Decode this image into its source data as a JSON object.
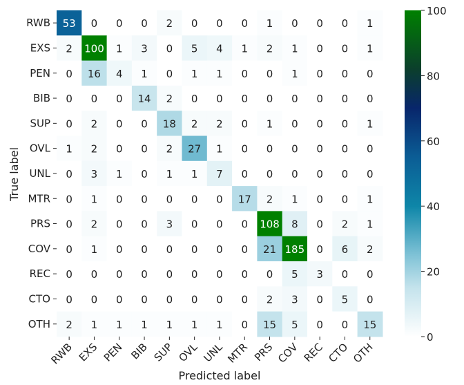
{
  "chart_data": {
    "type": "heatmap",
    "title": "",
    "xlabel": "Predicted label",
    "ylabel": "True label",
    "x_categories": [
      "RWB",
      "EXS",
      "PEN",
      "BIB",
      "SUP",
      "OVL",
      "UNL",
      "MTR",
      "PRS",
      "COV",
      "REC",
      "CTO",
      "OTH"
    ],
    "y_categories": [
      "RWB",
      "EXS",
      "PEN",
      "BIB",
      "SUP",
      "OVL",
      "UNL",
      "MTR",
      "PRS",
      "COV",
      "REC",
      "CTO",
      "OTH"
    ],
    "values": [
      [
        53,
        0,
        0,
        0,
        2,
        0,
        0,
        0,
        1,
        0,
        0,
        0,
        1
      ],
      [
        2,
        100,
        1,
        3,
        0,
        5,
        4,
        1,
        2,
        1,
        0,
        0,
        1
      ],
      [
        0,
        16,
        4,
        1,
        0,
        1,
        1,
        0,
        0,
        1,
        0,
        0,
        0
      ],
      [
        0,
        0,
        0,
        14,
        2,
        0,
        0,
        0,
        0,
        0,
        0,
        0,
        0
      ],
      [
        0,
        2,
        0,
        0,
        18,
        2,
        2,
        0,
        1,
        0,
        0,
        0,
        1
      ],
      [
        1,
        2,
        0,
        0,
        2,
        27,
        1,
        0,
        0,
        0,
        0,
        0,
        0
      ],
      [
        0,
        3,
        1,
        0,
        1,
        1,
        7,
        0,
        0,
        0,
        0,
        0,
        0
      ],
      [
        0,
        1,
        0,
        0,
        0,
        0,
        0,
        17,
        2,
        1,
        0,
        0,
        1
      ],
      [
        0,
        2,
        0,
        0,
        3,
        0,
        0,
        0,
        108,
        8,
        0,
        2,
        1
      ],
      [
        0,
        1,
        0,
        0,
        0,
        0,
        0,
        0,
        21,
        185,
        0,
        6,
        2
      ],
      [
        0,
        0,
        0,
        0,
        0,
        0,
        0,
        0,
        0,
        5,
        3,
        0,
        0
      ],
      [
        0,
        0,
        0,
        0,
        0,
        0,
        0,
        0,
        2,
        3,
        0,
        5,
        0
      ],
      [
        2,
        1,
        1,
        1,
        1,
        1,
        1,
        0,
        15,
        5,
        0,
        0,
        15
      ]
    ],
    "colorbar": {
      "range": [
        0,
        100
      ],
      "ticks": [
        0,
        20,
        40,
        60,
        80,
        100
      ],
      "tick_labels": [
        "0",
        "20",
        "40",
        "60",
        "80",
        "100"
      ],
      "colormap": "ocean_r"
    },
    "grid": false
  }
}
